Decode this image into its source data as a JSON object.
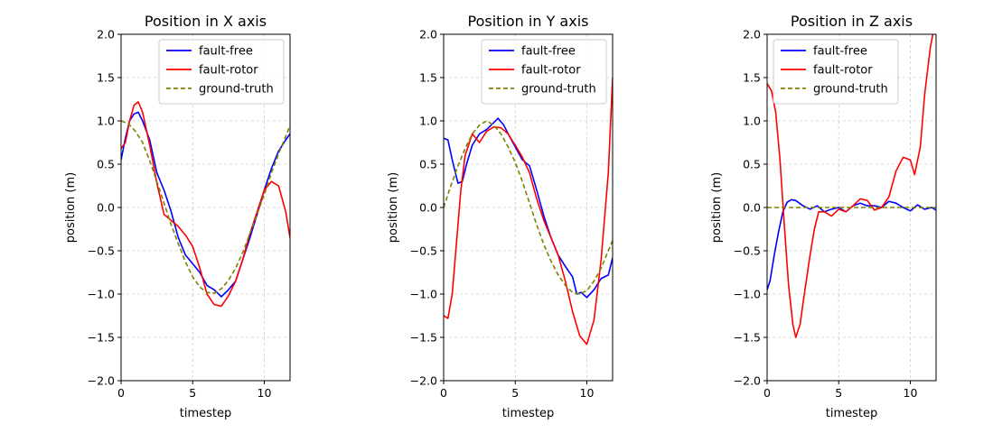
{
  "chart_data": [
    {
      "type": "line",
      "title": "Position in X axis",
      "xlabel": "timestep",
      "ylabel": "position (m)",
      "xlim": [
        0,
        11.8
      ],
      "ylim": [
        -2.0,
        2.0
      ],
      "xticks": [
        0,
        5,
        10
      ],
      "xtick_labels": [
        "0",
        "5",
        "10"
      ],
      "yticks": [
        -2.0,
        -1.5,
        -1.0,
        -0.5,
        0.0,
        0.5,
        1.0,
        1.5,
        2.0
      ],
      "ytick_labels": [
        "−2.0",
        "−1.5",
        "−1.0",
        "−0.5",
        "0.0",
        "0.5",
        "1.0",
        "1.5",
        "2.0"
      ],
      "grid": true,
      "legend_position": "top-right",
      "series": [
        {
          "name": "fault-free",
          "color": "#0000ff",
          "style": "solid",
          "x": [
            0,
            0.3,
            0.6,
            0.9,
            1.2,
            1.5,
            2.0,
            2.5,
            3.0,
            3.5,
            4.0,
            4.5,
            5.0,
            5.5,
            6.0,
            6.5,
            7.0,
            7.5,
            8.0,
            8.5,
            9.0,
            9.5,
            10.0,
            10.5,
            11.0,
            11.5,
            11.8
          ],
          "y": [
            0.55,
            0.8,
            1.0,
            1.08,
            1.1,
            1.0,
            0.78,
            0.4,
            0.2,
            -0.05,
            -0.35,
            -0.55,
            -0.65,
            -0.75,
            -0.9,
            -0.95,
            -1.03,
            -0.95,
            -0.85,
            -0.6,
            -0.35,
            -0.08,
            0.2,
            0.45,
            0.65,
            0.78,
            0.85
          ]
        },
        {
          "name": "fault-rotor",
          "color": "#ff0000",
          "style": "solid",
          "x": [
            0,
            0.3,
            0.6,
            0.9,
            1.2,
            1.5,
            2.0,
            2.5,
            3.0,
            3.5,
            4.0,
            4.5,
            5.0,
            5.5,
            6.0,
            6.5,
            7.0,
            7.5,
            8.0,
            8.5,
            9.0,
            9.5,
            10.0,
            10.5,
            11.0,
            11.5,
            11.8
          ],
          "y": [
            0.68,
            0.75,
            1.0,
            1.18,
            1.22,
            1.1,
            0.72,
            0.28,
            -0.08,
            -0.15,
            -0.22,
            -0.32,
            -0.45,
            -0.7,
            -1.0,
            -1.12,
            -1.14,
            -1.02,
            -0.85,
            -0.6,
            -0.3,
            -0.05,
            0.2,
            0.3,
            0.25,
            -0.05,
            -0.35
          ]
        },
        {
          "name": "ground-truth",
          "color": "#808000",
          "style": "dashed",
          "x": [
            0,
            0.5,
            1.0,
            1.5,
            2.0,
            2.5,
            3.0,
            3.5,
            4.0,
            4.5,
            5.0,
            5.5,
            6.0,
            6.5,
            7.0,
            7.5,
            8.0,
            8.5,
            9.0,
            9.5,
            10.0,
            10.5,
            11.0,
            11.5,
            11.8
          ],
          "y": [
            1.0,
            0.97,
            0.88,
            0.75,
            0.54,
            0.3,
            0.05,
            -0.2,
            -0.42,
            -0.63,
            -0.8,
            -0.92,
            -0.98,
            -0.99,
            -0.94,
            -0.84,
            -0.7,
            -0.52,
            -0.3,
            -0.08,
            0.15,
            0.4,
            0.62,
            0.82,
            0.95
          ]
        }
      ]
    },
    {
      "type": "line",
      "title": "Position in Y axis",
      "xlabel": "timestep",
      "ylabel": "position (m)",
      "xlim": [
        0,
        11.8
      ],
      "ylim": [
        -2.0,
        2.0
      ],
      "xticks": [
        0,
        5,
        10
      ],
      "xtick_labels": [
        "0",
        "5",
        "10"
      ],
      "yticks": [
        -2.0,
        -1.5,
        -1.0,
        -0.5,
        0.0,
        0.5,
        1.0,
        1.5,
        2.0
      ],
      "ytick_labels": [
        "−2.0",
        "−1.5",
        "−1.0",
        "−0.5",
        "0.0",
        "0.5",
        "1.0",
        "1.5",
        "2.0"
      ],
      "grid": true,
      "legend_position": "top-right",
      "series": [
        {
          "name": "fault-free",
          "color": "#0000ff",
          "style": "solid",
          "x": [
            0,
            0.3,
            0.6,
            1.0,
            1.3,
            1.6,
            2.0,
            2.5,
            3.0,
            3.5,
            3.8,
            4.2,
            4.6,
            5.0,
            5.5,
            6.0,
            6.5,
            7.0,
            7.5,
            8.0,
            8.5,
            9.0,
            9.3,
            9.6,
            10.0,
            10.5,
            11.0,
            11.5,
            11.8
          ],
          "y": [
            0.8,
            0.78,
            0.55,
            0.28,
            0.3,
            0.5,
            0.72,
            0.85,
            0.9,
            0.98,
            1.03,
            0.95,
            0.82,
            0.7,
            0.55,
            0.48,
            0.2,
            -0.1,
            -0.35,
            -0.55,
            -0.68,
            -0.8,
            -1.0,
            -0.98,
            -1.04,
            -0.95,
            -0.82,
            -0.78,
            -0.58
          ]
        },
        {
          "name": "fault-rotor",
          "color": "#ff0000",
          "style": "solid",
          "x": [
            0,
            0.3,
            0.6,
            0.9,
            1.2,
            1.5,
            2.0,
            2.5,
            3.0,
            3.5,
            4.0,
            4.5,
            5.0,
            5.5,
            6.0,
            6.5,
            7.0,
            7.5,
            8.0,
            8.5,
            9.0,
            9.5,
            10.0,
            10.5,
            11.0,
            11.5,
            11.8
          ],
          "y": [
            -1.25,
            -1.28,
            -1.0,
            -0.4,
            0.2,
            0.6,
            0.85,
            0.75,
            0.88,
            0.93,
            0.92,
            0.85,
            0.72,
            0.58,
            0.4,
            0.1,
            -0.15,
            -0.35,
            -0.55,
            -0.85,
            -1.2,
            -1.48,
            -1.58,
            -1.3,
            -0.6,
            0.4,
            1.5
          ]
        },
        {
          "name": "ground-truth",
          "color": "#808000",
          "style": "dashed",
          "x": [
            0,
            0.5,
            1.0,
            1.5,
            2.0,
            2.5,
            3.0,
            3.5,
            4.0,
            4.5,
            5.0,
            5.5,
            6.0,
            6.5,
            7.0,
            7.5,
            8.0,
            8.5,
            9.0,
            9.5,
            10.0,
            10.5,
            11.0,
            11.5,
            11.8
          ],
          "y": [
            0.0,
            0.25,
            0.48,
            0.68,
            0.85,
            0.95,
            1.0,
            0.95,
            0.85,
            0.7,
            0.52,
            0.3,
            0.05,
            -0.2,
            -0.43,
            -0.62,
            -0.78,
            -0.9,
            -0.98,
            -1.0,
            -0.96,
            -0.85,
            -0.7,
            -0.5,
            -0.38
          ]
        }
      ]
    },
    {
      "type": "line",
      "title": "Position in Z axis",
      "xlabel": "timestep",
      "ylabel": "position (m)",
      "xlim": [
        0,
        11.8
      ],
      "ylim": [
        -2.0,
        2.0
      ],
      "xticks": [
        0,
        5,
        10
      ],
      "xtick_labels": [
        "0",
        "5",
        "10"
      ],
      "yticks": [
        -2.0,
        -1.5,
        -1.0,
        -0.5,
        0.0,
        0.5,
        1.0,
        1.5,
        2.0
      ],
      "ytick_labels": [
        "−2.0",
        "−1.5",
        "−1.0",
        "−0.5",
        "0.0",
        "0.5",
        "1.0",
        "1.5",
        "2.0"
      ],
      "grid": true,
      "legend_position": "top-left",
      "series": [
        {
          "name": "fault-free",
          "color": "#0000ff",
          "style": "solid",
          "x": [
            0,
            0.2,
            0.5,
            0.8,
            1.1,
            1.4,
            1.7,
            2.0,
            2.5,
            3.0,
            3.5,
            4.0,
            4.5,
            5.0,
            5.5,
            6.0,
            6.5,
            7.0,
            7.5,
            8.0,
            8.5,
            9.0,
            9.5,
            10.0,
            10.5,
            11.0,
            11.5,
            11.8
          ],
          "y": [
            -0.95,
            -0.85,
            -0.55,
            -0.28,
            -0.05,
            0.06,
            0.09,
            0.08,
            0.02,
            -0.02,
            0.02,
            -0.05,
            -0.02,
            0.0,
            -0.05,
            0.02,
            0.05,
            0.02,
            0.02,
            0.0,
            0.07,
            0.05,
            0.0,
            -0.04,
            0.03,
            -0.02,
            0.0,
            -0.03
          ]
        },
        {
          "name": "fault-rotor",
          "color": "#ff0000",
          "style": "solid",
          "x": [
            0,
            0.3,
            0.6,
            0.9,
            1.2,
            1.5,
            1.8,
            2.0,
            2.3,
            2.6,
            3.0,
            3.3,
            3.6,
            4.0,
            4.5,
            5.0,
            5.5,
            6.0,
            6.5,
            7.0,
            7.5,
            8.0,
            8.5,
            9.0,
            9.5,
            10.0,
            10.3,
            10.7,
            11.0,
            11.4,
            11.6
          ],
          "y": [
            1.43,
            1.35,
            1.1,
            0.55,
            -0.2,
            -0.9,
            -1.35,
            -1.5,
            -1.35,
            -1.0,
            -0.55,
            -0.25,
            -0.05,
            -0.05,
            -0.1,
            -0.02,
            -0.05,
            0.02,
            0.1,
            0.08,
            -0.03,
            0.0,
            0.12,
            0.42,
            0.58,
            0.55,
            0.38,
            0.7,
            1.3,
            1.85,
            2.02
          ]
        },
        {
          "name": "ground-truth",
          "color": "#808000",
          "style": "dashed",
          "x": [
            0,
            11.8
          ],
          "y": [
            0.0,
            0.0
          ]
        }
      ]
    }
  ]
}
